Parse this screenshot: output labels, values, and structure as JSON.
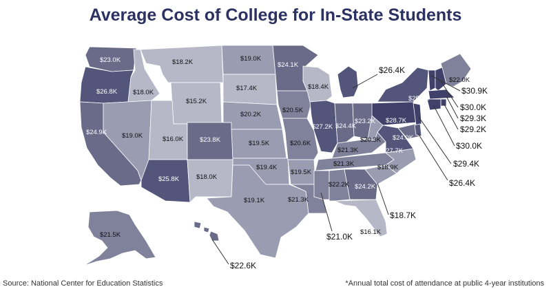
{
  "title": "Average Cost of College for In-State Students",
  "source": "Source: National Center for Education Statistics",
  "footnote": "*Annual total cost of attendance at public 4-year institutions",
  "colors": {
    "light": "#b6b8c8",
    "mid_light": "#9a9cb2",
    "mid": "#80829c",
    "mid_dark": "#696b88",
    "dark": "#53557a",
    "darkest": "#3f416a",
    "label_text": "#111111",
    "title_color": "#2b3160"
  },
  "states": [
    {
      "id": "WA",
      "label": "$23.0K",
      "value": 23.0
    },
    {
      "id": "OR",
      "label": "$26.8K",
      "value": 26.8
    },
    {
      "id": "CA",
      "label": "$24.9K",
      "value": 24.9
    },
    {
      "id": "ID",
      "label": "$18.0K",
      "value": 18.0
    },
    {
      "id": "NV",
      "label": "$19.0K",
      "value": 19.0
    },
    {
      "id": "MT",
      "label": "$18.2K",
      "value": 18.2
    },
    {
      "id": "WY",
      "label": "$15.2K",
      "value": 15.2
    },
    {
      "id": "UT",
      "label": "$16.0K",
      "value": 16.0
    },
    {
      "id": "AZ",
      "label": "$25.8K",
      "value": 25.8
    },
    {
      "id": "CO",
      "label": "$23.8K",
      "value": 23.8
    },
    {
      "id": "NM",
      "label": "$18.0K",
      "value": 18.0
    },
    {
      "id": "ND",
      "label": "$19.0K",
      "value": 19.0
    },
    {
      "id": "SD",
      "label": "$17.4K",
      "value": 17.4
    },
    {
      "id": "NE",
      "label": "$20.2K",
      "value": 20.2
    },
    {
      "id": "KS",
      "label": "$19.5K",
      "value": 19.5
    },
    {
      "id": "OK",
      "label": "$19.4K",
      "value": 19.4
    },
    {
      "id": "TX",
      "label": "$19.1K",
      "value": 19.1
    },
    {
      "id": "MN",
      "label": "$24.1K",
      "value": 24.1
    },
    {
      "id": "IA",
      "label": "$20.5K",
      "value": 20.5
    },
    {
      "id": "MO",
      "label": "$20.6K",
      "value": 20.6
    },
    {
      "id": "AR",
      "label": "$19.5K",
      "value": 19.5
    },
    {
      "id": "LA",
      "label": "$21.3K",
      "value": 21.3
    },
    {
      "id": "WI",
      "label": "$18.4K",
      "value": 18.4
    },
    {
      "id": "IL",
      "label": "$27.2K",
      "value": 27.2
    },
    {
      "id": "MI",
      "label": "$26.4K",
      "value": 26.4
    },
    {
      "id": "IN",
      "label": "$24.4K",
      "value": 24.4
    },
    {
      "id": "OH",
      "label": "$23.2K",
      "value": 23.2
    },
    {
      "id": "KY",
      "label": "$21.3K",
      "value": 21.3
    },
    {
      "id": "TN",
      "label": "$21.3K",
      "value": 21.3
    },
    {
      "id": "MS",
      "label": "$21.0K",
      "value": 21.0
    },
    {
      "id": "AL",
      "label": "$22.2K",
      "value": 22.2
    },
    {
      "id": "GA",
      "label": "$24.2K",
      "value": 24.2
    },
    {
      "id": "FL",
      "label": "$16.1K",
      "value": 16.1
    },
    {
      "id": "SC",
      "label": "$18.7K",
      "value": 18.7
    },
    {
      "id": "NC",
      "label": "$18.9K",
      "value": 18.9
    },
    {
      "id": "VA",
      "label": "$27.7K",
      "value": 27.7
    },
    {
      "id": "WV",
      "label": "$20.3K",
      "value": 20.3
    },
    {
      "id": "PA",
      "label": "$28.7K",
      "value": 28.7
    },
    {
      "id": "NY",
      "label": "$25.4K",
      "value": 25.4
    },
    {
      "id": "ME",
      "label": "$22.0K",
      "value": 22.0
    },
    {
      "id": "MD",
      "label": "$24.0K",
      "value": 24.0
    },
    {
      "id": "AK",
      "label": "$21.5K",
      "value": 21.5
    },
    {
      "id": "HI",
      "label": "$22.6K",
      "value": 22.6
    },
    {
      "id": "VT",
      "label": "$30.9K",
      "value": 30.9
    },
    {
      "id": "NH",
      "label": "$30.0K",
      "value": 30.0
    },
    {
      "id": "MA",
      "label": "$29.3K",
      "value": 29.3
    },
    {
      "id": "RI",
      "label": "$29.2K",
      "value": 29.2
    },
    {
      "id": "CT",
      "label": "$30.0K",
      "value": 30.0
    },
    {
      "id": "NJ",
      "label": "$29.4K",
      "value": 29.4
    },
    {
      "id": "DE",
      "label": "$26.4K",
      "value": 26.4
    }
  ]
}
